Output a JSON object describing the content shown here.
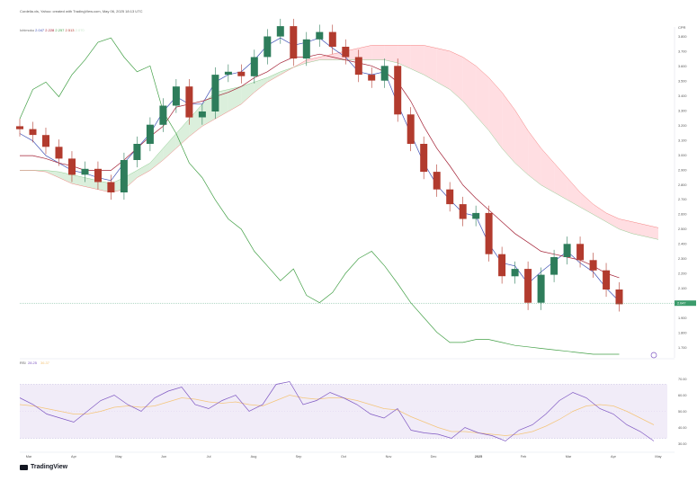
{
  "header": {
    "title": "Cordelia.xls, Yahoo: created with TradingView.com, May 06, 2025 18:13 UTC",
    "ichimoku_label": "Ichimoku",
    "ichimoku_values": [
      "2.047",
      "2.228",
      "2.257",
      "2.513",
      "2.070"
    ],
    "rsi_label": "RSI",
    "rsi_values": [
      "28.25",
      "36.37"
    ]
  },
  "price_axis": {
    "ticks": [
      "3.800",
      "3.700",
      "3.600",
      "3.500",
      "3.400",
      "3.300",
      "3.200",
      "3.100",
      "3.000",
      "2.900",
      "2.800",
      "2.700",
      "2.600",
      "2.500",
      "2.400",
      "2.300",
      "2.200",
      "2.100",
      "2.000",
      "1.900",
      "1.800",
      "1.700"
    ],
    "current_price": "2.047",
    "unit": "CPR"
  },
  "rsi_axis": {
    "ticks": [
      "70.00",
      "60.00",
      "50.00",
      "40.00",
      "30.00"
    ]
  },
  "time_axis": {
    "ticks": [
      "Mar",
      "Apr",
      "May",
      "Jun",
      "Jul",
      "Aug",
      "Sep",
      "Oct",
      "Nov",
      "Dec",
      "2025",
      "Feb",
      "Mar",
      "Apr",
      "May"
    ]
  },
  "logo_text": "TradingView",
  "colors": {
    "up": "#26a69a",
    "up_body": "#2e7d5b",
    "down": "#b23b2e",
    "tenkan": "#3f51b5",
    "kijun": "#a32135",
    "chikou": "#43a047",
    "cloud_bull": "#c8e6c9",
    "cloud_bear": "#ffcdd2",
    "rsi_line": "#7e57c2",
    "rsi_ma": "#f4c57a",
    "rsi_band": "#ede7f6",
    "current_badge": "#3c9c6c"
  },
  "chart_data": [
    {
      "type": "candlestick",
      "title": "",
      "indicator": "Ichimoku",
      "y_range": [
        1.7,
        3.9
      ],
      "series": [
        {
          "name": "Close",
          "values": [
            3.23,
            3.19,
            3.11,
            3.03,
            2.92,
            2.96,
            2.87,
            2.8,
            3.02,
            3.13,
            3.26,
            3.39,
            3.52,
            3.31,
            3.35,
            3.6,
            3.62,
            3.59,
            3.72,
            3.86,
            3.93,
            3.71,
            3.84,
            3.89,
            3.79,
            3.72,
            3.6,
            3.56,
            3.66,
            3.33,
            3.13,
            2.94,
            2.82,
            2.72,
            2.62,
            2.66,
            2.38,
            2.23,
            2.28,
            2.05,
            2.24,
            2.36,
            2.45,
            2.34,
            2.27,
            2.14,
            2.04
          ]
        },
        {
          "name": "Tenkan",
          "values": [
            3.2,
            3.15,
            3.05,
            3.0,
            2.95,
            2.93,
            2.9,
            2.88,
            3.0,
            3.1,
            3.2,
            3.35,
            3.45,
            3.4,
            3.4,
            3.55,
            3.6,
            3.62,
            3.7,
            3.8,
            3.85,
            3.8,
            3.82,
            3.85,
            3.78,
            3.72,
            3.62,
            3.6,
            3.62,
            3.4,
            3.2,
            3.0,
            2.85,
            2.75,
            2.66,
            2.64,
            2.45,
            2.32,
            2.3,
            2.18,
            2.26,
            2.33,
            2.4,
            2.32,
            2.26,
            2.15,
            2.06
          ]
        },
        {
          "name": "Kijun",
          "values": [
            3.05,
            3.05,
            3.03,
            3.0,
            2.98,
            2.95,
            2.95,
            2.95,
            3.02,
            3.1,
            3.18,
            3.25,
            3.38,
            3.4,
            3.42,
            3.45,
            3.48,
            3.52,
            3.58,
            3.62,
            3.68,
            3.72,
            3.72,
            3.74,
            3.72,
            3.7,
            3.68,
            3.66,
            3.62,
            3.55,
            3.42,
            3.25,
            3.1,
            2.98,
            2.85,
            2.76,
            2.68,
            2.6,
            2.52,
            2.46,
            2.4,
            2.38,
            2.36,
            2.34,
            2.3,
            2.25,
            2.22
          ]
        },
        {
          "name": "Chikou",
          "values": [
            3.3,
            3.5,
            3.55,
            3.45,
            3.6,
            3.7,
            3.82,
            3.85,
            3.72,
            3.62,
            3.66,
            3.35,
            3.2,
            3.0,
            2.9,
            2.75,
            2.62,
            2.55,
            2.4,
            2.3,
            2.2,
            2.28,
            2.1,
            2.05,
            2.12,
            2.25,
            2.35,
            2.4,
            2.3,
            2.18,
            2.05,
            1.95,
            1.85,
            1.78,
            1.78,
            1.8,
            1.8,
            1.78,
            1.76,
            1.75,
            1.74,
            1.73,
            1.72,
            1.71,
            1.7,
            1.7,
            1.7
          ]
        }
      ],
      "cloud": {
        "span_a": [
          2.95,
          2.95,
          2.95,
          2.94,
          2.92,
          2.9,
          2.88,
          2.86,
          2.9,
          2.95,
          3.0,
          3.1,
          3.2,
          3.3,
          3.4,
          3.48,
          3.5,
          3.52,
          3.55,
          3.58,
          3.62,
          3.65,
          3.68,
          3.7,
          3.7,
          3.7,
          3.7,
          3.7,
          3.7,
          3.68,
          3.64,
          3.6,
          3.55,
          3.5,
          3.42,
          3.32,
          3.22,
          3.1,
          3.0,
          2.92,
          2.85,
          2.8,
          2.75,
          2.7,
          2.65,
          2.6,
          2.55,
          2.52,
          2.5,
          2.48
        ],
        "span_b": [
          2.95,
          2.95,
          2.94,
          2.9,
          2.86,
          2.84,
          2.82,
          2.8,
          2.82,
          2.9,
          2.95,
          3.02,
          3.1,
          3.18,
          3.25,
          3.3,
          3.35,
          3.4,
          3.48,
          3.55,
          3.6,
          3.65,
          3.7,
          3.72,
          3.74,
          3.76,
          3.78,
          3.8,
          3.8,
          3.8,
          3.8,
          3.8,
          3.78,
          3.76,
          3.72,
          3.66,
          3.58,
          3.48,
          3.36,
          3.22,
          3.1,
          3.0,
          2.9,
          2.8,
          2.72,
          2.66,
          2.62,
          2.6,
          2.58,
          2.56
        ]
      }
    },
    {
      "type": "line",
      "title": "",
      "indicator": "RSI",
      "y_range": [
        25,
        75
      ],
      "bands": [
        30,
        70
      ],
      "series": [
        {
          "name": "RSI",
          "values": [
            60,
            55,
            48,
            45,
            42,
            50,
            58,
            62,
            55,
            50,
            60,
            65,
            68,
            55,
            52,
            58,
            62,
            50,
            55,
            70,
            72,
            55,
            58,
            64,
            60,
            55,
            48,
            45,
            52,
            36,
            34,
            33,
            30,
            38,
            34,
            32,
            28,
            36,
            40,
            48,
            58,
            64,
            60,
            52,
            48,
            40,
            35,
            28
          ]
        },
        {
          "name": "RSI MA",
          "values": [
            55,
            54,
            52,
            50,
            48,
            48,
            50,
            53,
            54,
            53,
            54,
            57,
            60,
            59,
            57,
            56,
            57,
            55,
            54,
            58,
            62,
            60,
            59,
            60,
            60,
            58,
            55,
            52,
            51,
            46,
            42,
            38,
            35,
            35,
            34,
            33,
            32,
            33,
            35,
            39,
            44,
            50,
            54,
            55,
            54,
            50,
            45,
            40
          ]
        }
      ]
    }
  ]
}
